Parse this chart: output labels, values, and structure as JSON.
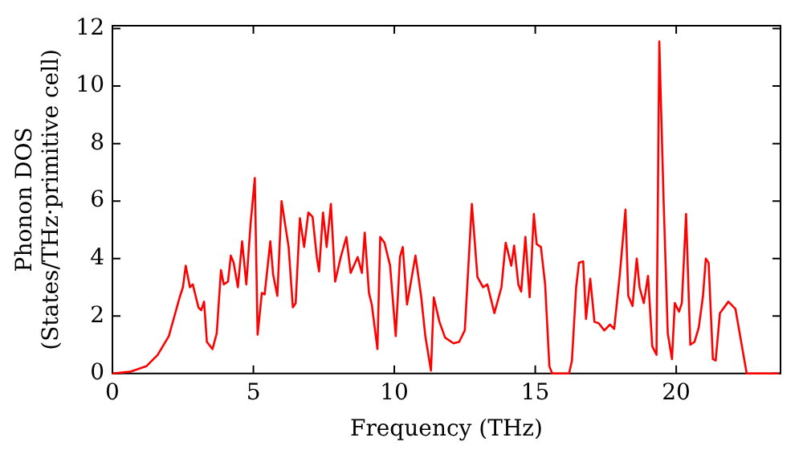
{
  "chart_data": {
    "type": "line",
    "xlabel": "Frequency (THz)",
    "ylabel": "Phonon DOS\n(States/THz·primitive cell)",
    "xlim": [
      0,
      23.7
    ],
    "ylim": [
      0,
      12.1
    ],
    "xticks": [
      0,
      5,
      10,
      15,
      20
    ],
    "yticks": [
      0,
      2,
      4,
      6,
      8,
      10,
      12
    ],
    "grid": false,
    "legend": false,
    "marker": "none",
    "line_style": "solid",
    "series": [
      {
        "color": "#ff0000",
        "x": [
          0,
          0.62,
          1.2,
          1.6,
          2.0,
          2.2,
          2.4,
          2.5,
          2.6,
          2.75,
          2.85,
          3.05,
          3.15,
          3.25,
          3.35,
          3.55,
          3.7,
          3.85,
          3.95,
          4.1,
          4.2,
          4.3,
          4.45,
          4.6,
          4.75,
          4.9,
          5.05,
          5.15,
          5.3,
          5.4,
          5.6,
          5.7,
          5.85,
          6.0,
          6.25,
          6.4,
          6.5,
          6.65,
          6.8,
          6.95,
          7.1,
          7.25,
          7.33,
          7.47,
          7.6,
          7.75,
          7.9,
          8.1,
          8.3,
          8.45,
          8.7,
          8.85,
          8.95,
          9.1,
          9.2,
          9.4,
          9.5,
          9.65,
          9.85,
          10.05,
          10.2,
          10.3,
          10.45,
          10.75,
          10.95,
          11.1,
          11.3,
          11.4,
          11.6,
          11.8,
          12.1,
          12.3,
          12.5,
          12.75,
          12.95,
          13.15,
          13.3,
          13.55,
          13.8,
          13.95,
          14.15,
          14.25,
          14.4,
          14.5,
          14.65,
          14.8,
          14.95,
          15.05,
          15.2,
          15.35,
          15.5,
          15.6,
          16.2,
          16.3,
          16.45,
          16.55,
          16.7,
          16.8,
          16.95,
          17.1,
          17.25,
          17.45,
          17.65,
          17.8,
          18.0,
          18.2,
          18.3,
          18.45,
          18.6,
          18.7,
          18.85,
          19.0,
          19.15,
          19.3,
          19.4,
          19.55,
          19.7,
          19.85,
          19.95,
          20.1,
          20.2,
          20.35,
          20.5,
          20.65,
          20.8,
          20.95,
          21.05,
          21.15,
          21.3,
          21.4,
          21.55,
          21.85,
          22.1,
          22.5,
          23.65
        ],
        "values": [
          0,
          0.06,
          0.25,
          0.64,
          1.3,
          2.0,
          2.7,
          3.0,
          3.75,
          3.0,
          3.1,
          2.3,
          2.2,
          2.5,
          1.1,
          0.85,
          1.4,
          3.6,
          3.1,
          3.2,
          4.1,
          3.85,
          3.0,
          4.6,
          3.1,
          5.2,
          6.8,
          1.35,
          2.8,
          2.75,
          4.6,
          3.45,
          2.7,
          6.0,
          4.4,
          2.3,
          2.45,
          5.4,
          4.4,
          5.6,
          5.45,
          4.05,
          3.55,
          5.6,
          4.4,
          5.9,
          3.2,
          4.05,
          4.75,
          3.5,
          4.05,
          3.5,
          4.9,
          2.8,
          2.4,
          0.85,
          4.75,
          4.55,
          3.75,
          1.3,
          4.05,
          4.4,
          2.4,
          4.1,
          2.7,
          1.3,
          0.1,
          2.65,
          1.8,
          1.25,
          1.05,
          1.1,
          1.5,
          5.9,
          3.35,
          3.0,
          3.1,
          2.1,
          3.0,
          4.55,
          3.75,
          4.45,
          3.1,
          2.85,
          4.75,
          2.65,
          5.55,
          4.5,
          4.4,
          3.1,
          0.25,
          0,
          0,
          0.45,
          3.0,
          3.85,
          3.9,
          1.9,
          3.3,
          1.8,
          1.75,
          1.5,
          1.7,
          1.55,
          3.45,
          5.7,
          2.7,
          2.35,
          4.0,
          3.0,
          2.45,
          3.4,
          0.95,
          0.65,
          11.55,
          6.1,
          1.4,
          0.5,
          2.45,
          2.15,
          2.45,
          5.55,
          1.0,
          1.1,
          1.6,
          2.7,
          4.0,
          3.85,
          0.5,
          0.45,
          2.1,
          2.5,
          2.25,
          0,
          0
        ]
      }
    ]
  }
}
